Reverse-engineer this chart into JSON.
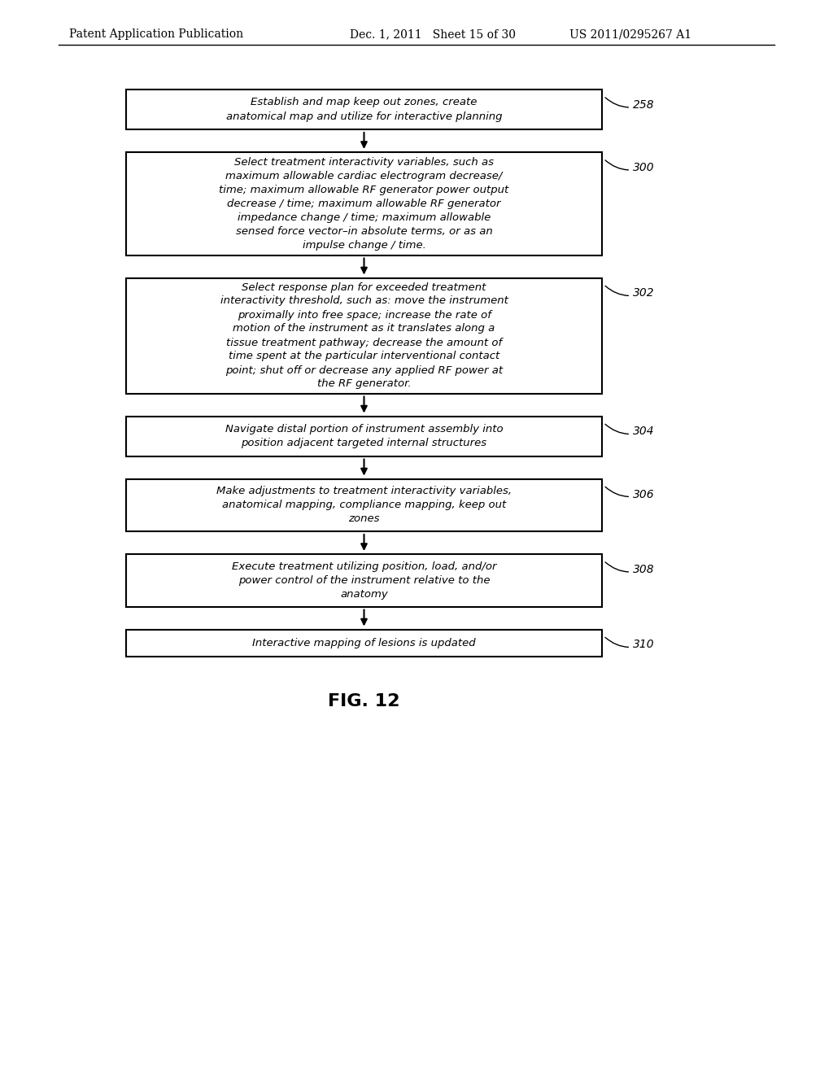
{
  "header_left": "Patent Application Publication",
  "header_mid": "Dec. 1, 2011   Sheet 15 of 30",
  "header_right": "US 2011/0295267 A1",
  "figure_label": "FIG. 12",
  "background_color": "#ffffff",
  "boxes": [
    {
      "id": "258",
      "label": "258",
      "text": "Establish and map keep out zones, create\nanatomical map and utilize for interactive planning",
      "lines": 2
    },
    {
      "id": "300",
      "label": "300",
      "text": "Select treatment interactivity variables, such as\nmaximum allowable cardiac electrogram decrease/\ntime; maximum allowable RF generator power output\ndecrease / time; maximum allowable RF generator\nimpedance change / time; maximum allowable\nsensed force vector–in absolute terms, or as an\nimpulse change / time.",
      "lines": 7
    },
    {
      "id": "302",
      "label": "302",
      "text": "Select response plan for exceeded treatment\ninteractivity threshold, such as: move the instrument\nproximally into free space; increase the rate of\nmotion of the instrument as it translates along a\ntissue treatment pathway; decrease the amount of\ntime spent at the particular interventional contact\npoint; shut off or decrease any applied RF power at\nthe RF generator.",
      "lines": 8
    },
    {
      "id": "304",
      "label": "304",
      "text": "Navigate distal portion of instrument assembly into\nposition adjacent targeted internal structures",
      "lines": 2
    },
    {
      "id": "306",
      "label": "306",
      "text": "Make adjustments to treatment interactivity variables,\nanatomical mapping, compliance mapping, keep out\nzones",
      "lines": 3
    },
    {
      "id": "308",
      "label": "308",
      "text": "Execute treatment utilizing position, load, and/or\npower control of the instrument relative to the\nanatomy",
      "lines": 3
    },
    {
      "id": "310",
      "label": "310",
      "text": "Interactive mapping of lesions is updated",
      "lines": 1
    }
  ]
}
